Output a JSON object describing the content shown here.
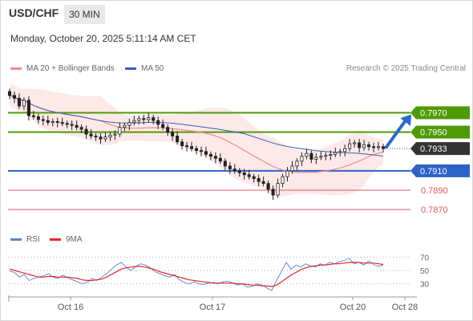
{
  "header": {
    "pair": "USD/CHF",
    "timeframe": "30 MIN"
  },
  "datetime": "Monday, October 20, 2025 5:11:14 AM CET",
  "legend": {
    "ma20_label": "MA 20 + Bollinger Bands",
    "ma50_label": "MA 50",
    "rsi_label": "RSI",
    "rsi_ma_label": "9MA"
  },
  "credit": "Research © 2025 Trading Central",
  "colors": {
    "resistance": "#4e9a06",
    "support": "#2d62c8",
    "minor": "#e05a5a",
    "current": "#333333",
    "ma20": "#f28a8a",
    "band": "#fde2e2",
    "ma50": "#3d5fb5",
    "rsi": "#5b7fd8",
    "rsi_ma": "#e02828"
  },
  "chart_data": [
    {
      "type": "candlestick",
      "ylim": [
        0.7861,
        0.7997
      ],
      "current_price": 0.7933,
      "levels": [
        {
          "value": 0.797,
          "label": "0.7970",
          "kind": "resistance"
        },
        {
          "value": 0.795,
          "label": "0.7950",
          "kind": "resistance"
        },
        {
          "value": 0.7933,
          "label": "0.7933",
          "kind": "current"
        },
        {
          "value": 0.791,
          "label": "0.7910",
          "kind": "support"
        },
        {
          "value": 0.789,
          "label": "0.7890",
          "kind": "minor"
        },
        {
          "value": 0.787,
          "label": "0.7870",
          "kind": "minor"
        }
      ],
      "x_ticks": [
        "Oct 16",
        "Oct 17",
        "Oct 20",
        "Oct 28"
      ],
      "close": [
        0.7988,
        0.7985,
        0.7977,
        0.7983,
        0.7967,
        0.7966,
        0.7963,
        0.7962,
        0.796,
        0.7961,
        0.796,
        0.7959,
        0.7958,
        0.7957,
        0.7955,
        0.7953,
        0.7948,
        0.7946,
        0.7945,
        0.7943,
        0.7945,
        0.7947,
        0.7948,
        0.7955,
        0.7957,
        0.796,
        0.7962,
        0.7964,
        0.7963,
        0.7965,
        0.7962,
        0.7958,
        0.7955,
        0.795,
        0.7946,
        0.794,
        0.7936,
        0.7935,
        0.7933,
        0.7931,
        0.793,
        0.7927,
        0.7925,
        0.7923,
        0.792,
        0.7915,
        0.7912,
        0.791,
        0.7908,
        0.7906,
        0.7904,
        0.7902,
        0.7899,
        0.7897,
        0.7891,
        0.7885,
        0.7897,
        0.7904,
        0.791,
        0.7915,
        0.792,
        0.7925,
        0.7928,
        0.7922,
        0.7924,
        0.7925,
        0.7926,
        0.7927,
        0.7929,
        0.793,
        0.7933,
        0.7938,
        0.7939,
        0.7934,
        0.7937,
        0.7935,
        0.7934,
        0.7935,
        0.7933
      ]
    },
    {
      "type": "line",
      "title": "RSI",
      "ylim": [
        20,
        80
      ],
      "y_ticks": [
        70,
        50,
        30
      ],
      "series": [
        {
          "name": "RSI",
          "values": [
            49,
            47,
            40,
            44,
            35,
            38,
            40,
            42,
            45,
            40,
            38,
            43,
            39,
            36,
            33,
            30,
            32,
            38,
            35,
            40,
            45,
            52,
            58,
            62,
            55,
            50,
            56,
            60,
            58,
            54,
            48,
            45,
            42,
            40,
            44,
            36,
            32,
            30,
            33,
            30,
            29,
            31,
            32,
            30,
            33,
            34,
            31,
            28,
            30,
            25,
            26,
            30,
            28,
            24,
            20,
            35,
            48,
            62,
            52,
            58,
            55,
            60,
            57,
            55,
            60,
            58,
            62,
            60,
            63,
            65,
            68,
            60,
            62,
            58,
            64,
            59,
            56,
            58
          ]
        },
        {
          "name": "9MA",
          "values": [
            52,
            50,
            48,
            46,
            44,
            42,
            40,
            40,
            41,
            41,
            40,
            40,
            40,
            39,
            38,
            36,
            35,
            35,
            36,
            37,
            40,
            44,
            48,
            52,
            54,
            55,
            56,
            56,
            55,
            53,
            51,
            48,
            46,
            44,
            42,
            40,
            38,
            36,
            35,
            34,
            33,
            32,
            31,
            31,
            31,
            31,
            31,
            30,
            30,
            29,
            28,
            28,
            27,
            27,
            26,
            28,
            33,
            38,
            43,
            47,
            51,
            54,
            56,
            57,
            58,
            58,
            59,
            60,
            60,
            61,
            62,
            62,
            62,
            61,
            61,
            61,
            60,
            59
          ]
        }
      ]
    }
  ]
}
